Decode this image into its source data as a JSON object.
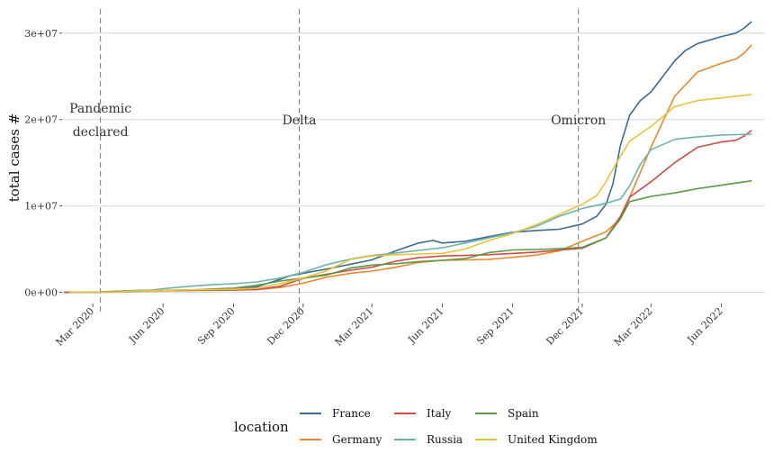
{
  "chart_data": {
    "type": "line",
    "title": "",
    "xlabel": "",
    "ylabel": "total cases #",
    "y_ticks": [
      {
        "value": 0,
        "label": "0e+00"
      },
      {
        "value": 10000000,
        "label": "1e+07"
      },
      {
        "value": 20000000,
        "label": "2e+07"
      },
      {
        "value": 30000000,
        "label": "3e+07"
      }
    ],
    "x_ticks": [
      {
        "date": "2020-03-01",
        "label": "Mar 2020"
      },
      {
        "date": "2020-06-01",
        "label": "Jun 2020"
      },
      {
        "date": "2020-09-01",
        "label": "Sep 2020"
      },
      {
        "date": "2020-12-01",
        "label": "Dec 2020"
      },
      {
        "date": "2021-03-01",
        "label": "Mar 2021"
      },
      {
        "date": "2021-06-01",
        "label": "Jun 2021"
      },
      {
        "date": "2021-09-01",
        "label": "Sep 2021"
      },
      {
        "date": "2021-12-01",
        "label": "Dec 2021"
      },
      {
        "date": "2022-03-01",
        "label": "Mar 2022"
      },
      {
        "date": "2022-06-01",
        "label": "Jun 2022"
      }
    ],
    "xlim": [
      "2020-01-22",
      "2022-07-28"
    ],
    "ylim": [
      -1200000,
      33000000
    ],
    "grid": "horizontal",
    "legend": {
      "title": "location",
      "position": "bottom"
    },
    "annotations": [
      {
        "date": "2020-03-11",
        "lines": [
          "Pandemic",
          "declared"
        ]
      },
      {
        "date": "2020-11-26",
        "lines": [
          "Delta"
        ]
      },
      {
        "date": "2021-11-26",
        "lines": [
          "Omicron"
        ]
      }
    ],
    "series": [
      {
        "name": "France",
        "color": "#3c6b93",
        "points": [
          [
            "2020-01-24",
            0
          ],
          [
            "2020-03-01",
            100
          ],
          [
            "2020-04-01",
            60000
          ],
          [
            "2020-05-01",
            170000
          ],
          [
            "2020-07-01",
            200000
          ],
          [
            "2020-09-01",
            330000
          ],
          [
            "2020-10-01",
            620000
          ],
          [
            "2020-11-01",
            1500000
          ],
          [
            "2020-11-15",
            1950000
          ],
          [
            "2020-12-01",
            2200000
          ],
          [
            "2021-01-01",
            2700000
          ],
          [
            "2021-02-01",
            3250000
          ],
          [
            "2021-03-01",
            3750000
          ],
          [
            "2021-04-01",
            4800000
          ],
          [
            "2021-05-01",
            5700000
          ],
          [
            "2021-05-20",
            6000000
          ],
          [
            "2021-06-01",
            5700000
          ],
          [
            "2021-07-01",
            5900000
          ],
          [
            "2021-08-01",
            6450000
          ],
          [
            "2021-09-01",
            6950000
          ],
          [
            "2021-10-01",
            7150000
          ],
          [
            "2021-11-01",
            7300000
          ],
          [
            "2021-12-01",
            7900000
          ],
          [
            "2021-12-20",
            8800000
          ],
          [
            "2022-01-01",
            10200000
          ],
          [
            "2022-01-10",
            12500000
          ],
          [
            "2022-01-20",
            17000000
          ],
          [
            "2022-02-01",
            20500000
          ],
          [
            "2022-02-15",
            22200000
          ],
          [
            "2022-03-01",
            23200000
          ],
          [
            "2022-04-01",
            26800000
          ],
          [
            "2022-04-15",
            28000000
          ],
          [
            "2022-05-01",
            28800000
          ],
          [
            "2022-06-01",
            29600000
          ],
          [
            "2022-06-20",
            30000000
          ],
          [
            "2022-07-01",
            30600000
          ],
          [
            "2022-07-10",
            31300000
          ]
        ]
      },
      {
        "name": "Germany",
        "color": "#e8892c",
        "points": [
          [
            "2020-01-24",
            0
          ],
          [
            "2020-03-01",
            100
          ],
          [
            "2020-04-01",
            60000
          ],
          [
            "2020-05-01",
            160000
          ],
          [
            "2020-07-01",
            200000
          ],
          [
            "2020-09-01",
            250000
          ],
          [
            "2020-10-01",
            300000
          ],
          [
            "2020-11-01",
            550000
          ],
          [
            "2020-12-01",
            1050000
          ],
          [
            "2021-01-01",
            1750000
          ],
          [
            "2021-02-01",
            2200000
          ],
          [
            "2021-03-01",
            2450000
          ],
          [
            "2021-04-01",
            2900000
          ],
          [
            "2021-05-01",
            3450000
          ],
          [
            "2021-06-01",
            3700000
          ],
          [
            "2021-08-01",
            3800000
          ],
          [
            "2021-10-01",
            4300000
          ],
          [
            "2021-11-01",
            4800000
          ],
          [
            "2021-12-01",
            5900000
          ],
          [
            "2022-01-01",
            7000000
          ],
          [
            "2022-01-20",
            8500000
          ],
          [
            "2022-02-01",
            11000000
          ],
          [
            "2022-03-01",
            16800000
          ],
          [
            "2022-03-15",
            19500000
          ],
          [
            "2022-04-01",
            22700000
          ],
          [
            "2022-05-01",
            25500000
          ],
          [
            "2022-06-01",
            26500000
          ],
          [
            "2022-06-20",
            27000000
          ],
          [
            "2022-07-01",
            27700000
          ],
          [
            "2022-07-10",
            28600000
          ]
        ]
      },
      {
        "name": "Italy",
        "color": "#d24b45",
        "points": [
          [
            "2020-01-24",
            0
          ],
          [
            "2020-03-01",
            1500
          ],
          [
            "2020-04-01",
            110000
          ],
          [
            "2020-05-01",
            205000
          ],
          [
            "2020-07-01",
            240000
          ],
          [
            "2020-09-01",
            270000
          ],
          [
            "2020-10-01",
            315000
          ],
          [
            "2020-11-01",
            700000
          ],
          [
            "2020-12-01",
            1600000
          ],
          [
            "2021-01-01",
            2100000
          ],
          [
            "2021-02-01",
            2550000
          ],
          [
            "2021-03-01",
            2900000
          ],
          [
            "2021-04-01",
            3600000
          ],
          [
            "2021-05-01",
            4000000
          ],
          [
            "2021-06-01",
            4200000
          ],
          [
            "2021-08-01",
            4350000
          ],
          [
            "2021-10-01",
            4650000
          ],
          [
            "2021-12-01",
            5100000
          ],
          [
            "2022-01-01",
            6300000
          ],
          [
            "2022-01-20",
            8800000
          ],
          [
            "2022-02-01",
            11000000
          ],
          [
            "2022-03-01",
            12800000
          ],
          [
            "2022-04-01",
            15000000
          ],
          [
            "2022-05-01",
            16800000
          ],
          [
            "2022-06-01",
            17400000
          ],
          [
            "2022-06-20",
            17600000
          ],
          [
            "2022-07-01",
            18100000
          ],
          [
            "2022-07-10",
            18700000
          ]
        ]
      },
      {
        "name": "Russia",
        "color": "#6cb3ad",
        "points": [
          [
            "2020-01-31",
            0
          ],
          [
            "2020-03-01",
            100
          ],
          [
            "2020-04-01",
            4000
          ],
          [
            "2020-05-01",
            110000
          ],
          [
            "2020-06-01",
            420000
          ],
          [
            "2020-07-01",
            660000
          ],
          [
            "2020-08-01",
            860000
          ],
          [
            "2020-09-01",
            1000000
          ],
          [
            "2020-10-01",
            1200000
          ],
          [
            "2020-11-01",
            1650000
          ],
          [
            "2020-12-01",
            2300000
          ],
          [
            "2021-01-01",
            3200000
          ],
          [
            "2021-02-01",
            3850000
          ],
          [
            "2021-03-01",
            4250000
          ],
          [
            "2021-04-01",
            4550000
          ],
          [
            "2021-05-01",
            4850000
          ],
          [
            "2021-06-01",
            5150000
          ],
          [
            "2021-07-01",
            5700000
          ],
          [
            "2021-08-01",
            6300000
          ],
          [
            "2021-09-01",
            6900000
          ],
          [
            "2021-10-01",
            7600000
          ],
          [
            "2021-11-01",
            8800000
          ],
          [
            "2021-12-01",
            9700000
          ],
          [
            "2022-01-01",
            10300000
          ],
          [
            "2022-01-20",
            10800000
          ],
          [
            "2022-02-01",
            12300000
          ],
          [
            "2022-02-15",
            14800000
          ],
          [
            "2022-03-01",
            16500000
          ],
          [
            "2022-04-01",
            17700000
          ],
          [
            "2022-05-01",
            18000000
          ],
          [
            "2022-06-01",
            18200000
          ],
          [
            "2022-07-10",
            18300000
          ]
        ]
      },
      {
        "name": "Spain",
        "color": "#5a9a45",
        "points": [
          [
            "2020-01-31",
            0
          ],
          [
            "2020-03-01",
            100
          ],
          [
            "2020-04-01",
            100000
          ],
          [
            "2020-05-01",
            215000
          ],
          [
            "2020-07-01",
            250000
          ],
          [
            "2020-09-01",
            480000
          ],
          [
            "2020-10-01",
            800000
          ],
          [
            "2020-11-01",
            1300000
          ],
          [
            "2020-12-01",
            1650000
          ],
          [
            "2021-01-01",
            2000000
          ],
          [
            "2021-02-01",
            2800000
          ],
          [
            "2021-03-01",
            3150000
          ],
          [
            "2021-04-01",
            3300000
          ],
          [
            "2021-05-01",
            3550000
          ],
          [
            "2021-06-01",
            3700000
          ],
          [
            "2021-07-01",
            3900000
          ],
          [
            "2021-08-01",
            4600000
          ],
          [
            "2021-09-01",
            4900000
          ],
          [
            "2021-10-01",
            4950000
          ],
          [
            "2021-11-01",
            5050000
          ],
          [
            "2021-12-01",
            5200000
          ],
          [
            "2022-01-01",
            6300000
          ],
          [
            "2022-01-20",
            8500000
          ],
          [
            "2022-02-01",
            10500000
          ],
          [
            "2022-03-01",
            11100000
          ],
          [
            "2022-04-01",
            11500000
          ],
          [
            "2022-05-01",
            12000000
          ],
          [
            "2022-06-01",
            12400000
          ],
          [
            "2022-07-10",
            12900000
          ]
        ]
      },
      {
        "name": "United Kingdom",
        "color": "#e9c23a",
        "points": [
          [
            "2020-01-31",
            0
          ],
          [
            "2020-03-01",
            100
          ],
          [
            "2020-04-01",
            30000
          ],
          [
            "2020-05-01",
            180000
          ],
          [
            "2020-07-01",
            280000
          ],
          [
            "2020-09-01",
            340000
          ],
          [
            "2020-10-01",
            460000
          ],
          [
            "2020-11-01",
            1000000
          ],
          [
            "2020-12-01",
            1650000
          ],
          [
            "2021-01-01",
            2500000
          ],
          [
            "2021-02-01",
            3800000
          ],
          [
            "2021-03-01",
            4200000
          ],
          [
            "2021-04-01",
            4350000
          ],
          [
            "2021-05-01",
            4430000
          ],
          [
            "2021-06-01",
            4500000
          ],
          [
            "2021-07-01",
            5000000
          ],
          [
            "2021-08-01",
            6000000
          ],
          [
            "2021-09-01",
            6800000
          ],
          [
            "2021-10-01",
            7800000
          ],
          [
            "2021-11-01",
            9000000
          ],
          [
            "2021-12-01",
            10200000
          ],
          [
            "2021-12-20",
            11200000
          ],
          [
            "2022-01-01",
            12800000
          ],
          [
            "2022-01-15",
            15000000
          ],
          [
            "2022-02-01",
            17500000
          ],
          [
            "2022-03-01",
            19200000
          ],
          [
            "2022-04-01",
            21500000
          ],
          [
            "2022-05-01",
            22200000
          ],
          [
            "2022-06-01",
            22500000
          ],
          [
            "2022-06-20",
            22700000
          ],
          [
            "2022-07-10",
            22900000
          ]
        ]
      }
    ]
  }
}
